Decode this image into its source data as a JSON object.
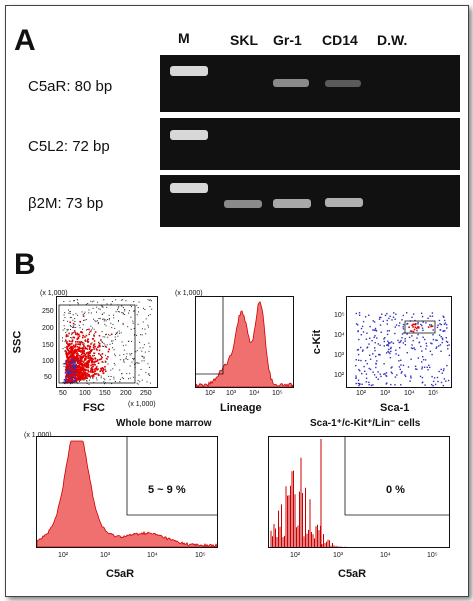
{
  "panel_a": {
    "letter": "A",
    "lanes": [
      "M",
      "SKL",
      "Gr-1",
      "CD14",
      "D.W."
    ],
    "rows": [
      {
        "label": "C5aR: 80 bp",
        "bands": [
          1,
          0,
          0.55,
          0.35,
          0
        ]
      },
      {
        "label": "C5L2: 72 bp",
        "bands": [
          1,
          0,
          0,
          0,
          0
        ]
      },
      {
        "label": "β2M: 73 bp",
        "bands": [
          1,
          0.55,
          0.7,
          0.75,
          0
        ]
      }
    ]
  },
  "panel_b": {
    "letter": "B",
    "scatter1": {
      "xlabel": "FSC",
      "ylabel": "SSC",
      "xunit": "(x 1,000)",
      "yunit": "(x 1,000)",
      "xticks": [
        "50",
        "100",
        "150",
        "200",
        "250"
      ],
      "yticks": [
        "50",
        "100",
        "150",
        "200",
        "250"
      ]
    },
    "lineage": {
      "xlabel": "Lineage",
      "yunit": "(x 1,000)",
      "xticks": [
        "10²",
        "10³",
        "10⁴",
        "10⁵"
      ]
    },
    "scatter2": {
      "xlabel": "Sca-1",
      "ylabel": "c-Kit",
      "xticks": [
        "10²",
        "10³",
        "10⁴",
        "10⁵"
      ],
      "yticks": [
        "10²",
        "10³",
        "10⁴",
        "10⁵"
      ]
    },
    "caption_left": "Whole bone marrow",
    "caption_right": "Sca-1⁺/c-Kit⁺/Lin⁻ cells",
    "hist_left": {
      "xlabel": "C5aR",
      "yunit": "(x 1,000)",
      "percent": "5 ~ 9 %",
      "xticks": [
        "10²",
        "10³",
        "10⁴",
        "10⁵"
      ]
    },
    "hist_right": {
      "xlabel": "C5aR",
      "percent": "0 %",
      "xticks": [
        "10²",
        "10³",
        "10⁴",
        "10⁵"
      ]
    }
  },
  "colors": {
    "gel_bg": "#111111",
    "band": "#e6e6e6",
    "histogram_fill": "#f07070",
    "histogram_line": "#cc0000",
    "scatter_red": "#e00000",
    "scatter_blue": "#3030c0"
  }
}
